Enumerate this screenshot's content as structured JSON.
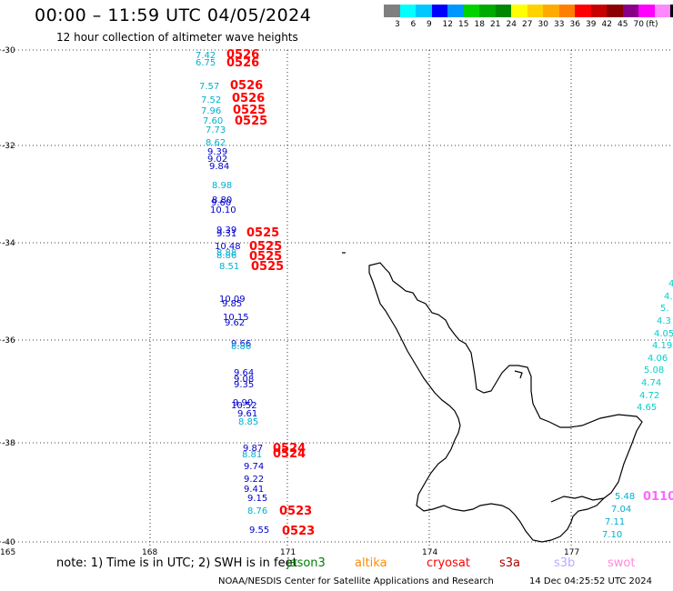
{
  "title": "00:00 – 11:59 UTC 04/05/2024",
  "subtitle": "12 hour collection of altimeter wave heights",
  "legend": {
    "colors": [
      "#7f7f7f",
      "#00ffff",
      "#00c8ff",
      "#0000ff",
      "#0096ff",
      "#00d200",
      "#00aa00",
      "#008800",
      "#ffff00",
      "#ffd200",
      "#ffaa00",
      "#ff8000",
      "#ff0000",
      "#c80000",
      "#8b0000",
      "#880088",
      "#ff00ff",
      "#ff88ff",
      "#000000"
    ],
    "ticks": [
      "3",
      "6",
      "9",
      "12",
      "15",
      "18",
      "21",
      "24",
      "27",
      "30",
      "33",
      "36",
      "39",
      "42",
      "45",
      "70"
    ],
    "unit": "(ft)"
  },
  "axes": {
    "lat_labels": [
      "-30",
      "-32",
      "-34",
      "-36",
      "-38",
      "-40"
    ],
    "lon_labels": [
      "165",
      "168",
      "171",
      "174",
      "177"
    ]
  },
  "labels": [
    {
      "t": "7.42",
      "c": "#00b0d0"
    },
    {
      "t": "0526",
      "c": "#ff0000",
      "big": true
    },
    {
      "t": "6.75",
      "c": "#00b0d0"
    },
    {
      "t": "0526",
      "c": "#ff0000",
      "big": true
    },
    {
      "t": "7.57",
      "c": "#00b0d0"
    },
    {
      "t": "0526",
      "c": "#ff0000",
      "big": true
    },
    {
      "t": "7.52",
      "c": "#00b0d0"
    },
    {
      "t": "0526",
      "c": "#ff0000",
      "big": true
    },
    {
      "t": "7.96",
      "c": "#00b0d0"
    },
    {
      "t": "0525",
      "c": "#ff0000",
      "big": true
    },
    {
      "t": "7.60",
      "c": "#00b0d0"
    },
    {
      "t": "0525",
      "c": "#ff0000",
      "big": true
    },
    {
      "t": "7.73",
      "c": "#00b0d0"
    },
    {
      "t": "8.62",
      "c": "#00b0d0"
    },
    {
      "t": "9.39",
      "c": "#0000cc"
    },
    {
      "t": "9.02",
      "c": "#0000cc"
    },
    {
      "t": "9.84",
      "c": "#0000cc"
    },
    {
      "t": "8.98",
      "c": "#00b0d0"
    },
    {
      "t": "8.80",
      "c": "#0000cc"
    },
    {
      "t": "9.60",
      "c": "#0000cc"
    },
    {
      "t": "10.10",
      "c": "#0000cc"
    },
    {
      "t": "9.39",
      "c": "#0000cc"
    },
    {
      "t": "9.31",
      "c": "#0000cc"
    },
    {
      "t": "0525",
      "c": "#ff0000",
      "big": true
    },
    {
      "t": "10.48",
      "c": "#0000cc"
    },
    {
      "t": "0525",
      "c": "#ff0000",
      "big": true
    },
    {
      "t": "8.88",
      "c": "#00b0d0"
    },
    {
      "t": "8.86",
      "c": "#00b0d0"
    },
    {
      "t": "0525",
      "c": "#ff0000",
      "big": true
    },
    {
      "t": "8.51",
      "c": "#00b0d0"
    },
    {
      "t": "0525",
      "c": "#ff0000",
      "big": true
    },
    {
      "t": "10.09",
      "c": "#0000cc"
    },
    {
      "t": "9.85",
      "c": "#0000cc"
    },
    {
      "t": "10.15",
      "c": "#0000cc"
    },
    {
      "t": "9.62",
      "c": "#0000cc"
    },
    {
      "t": "9.66",
      "c": "#0000cc"
    },
    {
      "t": "8.86",
      "c": "#00b0d0"
    },
    {
      "t": "9.64",
      "c": "#0000cc"
    },
    {
      "t": "9.08",
      "c": "#0000cc"
    },
    {
      "t": "9.35",
      "c": "#0000cc"
    },
    {
      "t": "9.90",
      "c": "#0000cc"
    },
    {
      "t": "10.52",
      "c": "#0000cc"
    },
    {
      "t": "9.61",
      "c": "#0000cc"
    },
    {
      "t": "8.85",
      "c": "#00b0d0"
    },
    {
      "t": "9.87",
      "c": "#0000cc"
    },
    {
      "t": "0524",
      "c": "#ff0000",
      "big": true
    },
    {
      "t": "8.81",
      "c": "#00b0d0"
    },
    {
      "t": "0524",
      "c": "#ff0000",
      "big": true
    },
    {
      "t": "9.74",
      "c": "#0000cc"
    },
    {
      "t": "9.22",
      "c": "#0000cc"
    },
    {
      "t": "9.41",
      "c": "#0000cc"
    },
    {
      "t": "9.15",
      "c": "#0000cc"
    },
    {
      "t": "8.76",
      "c": "#00b0d0"
    },
    {
      "t": "0523",
      "c": "#ff0000",
      "big": true
    },
    {
      "t": "9.55",
      "c": "#0000cc"
    },
    {
      "t": "0523",
      "c": "#ff0000",
      "big": true
    },
    {
      "t": "4.",
      "c": "#00d0d0"
    },
    {
      "t": "4.",
      "c": "#00d0d0"
    },
    {
      "t": "5.",
      "c": "#00d0d0"
    },
    {
      "t": "4.3",
      "c": "#00d0d0"
    },
    {
      "t": "4.05",
      "c": "#00d0d0"
    },
    {
      "t": "4.19",
      "c": "#00d0d0"
    },
    {
      "t": "4.06",
      "c": "#00d0d0"
    },
    {
      "t": "5.08",
      "c": "#00d0d0"
    },
    {
      "t": "4.74",
      "c": "#00d0d0"
    },
    {
      "t": "4.72",
      "c": "#00d0d0"
    },
    {
      "t": "4.65",
      "c": "#00d0d0"
    },
    {
      "t": "5.48",
      "c": "#00b0d0"
    },
    {
      "t": "0110",
      "c": "#ff66ff",
      "big": true
    },
    {
      "t": "7.04",
      "c": "#00b0d0"
    },
    {
      "t": "7.11",
      "c": "#00b0d0"
    },
    {
      "t": "7.10",
      "c": "#00b0d0"
    }
  ],
  "footer": {
    "note": "note:  1) Time is in UTC; 2) SWH is in feet",
    "sats": [
      {
        "name": "jason3",
        "color": "#008000"
      },
      {
        "name": "altika",
        "color": "#ff8c00"
      },
      {
        "name": "cryosat",
        "color": "#ff0000"
      },
      {
        "name": "s3a",
        "color": "#aa0000"
      },
      {
        "name": "s3b",
        "color": "#bbaaff"
      },
      {
        "name": "swot",
        "color": "#ff88dd"
      }
    ],
    "credit": "NOAA/NESDIS Center for Satellite Applications and Research",
    "timestamp": "14 Dec 04:25:52 UTC 2024"
  }
}
